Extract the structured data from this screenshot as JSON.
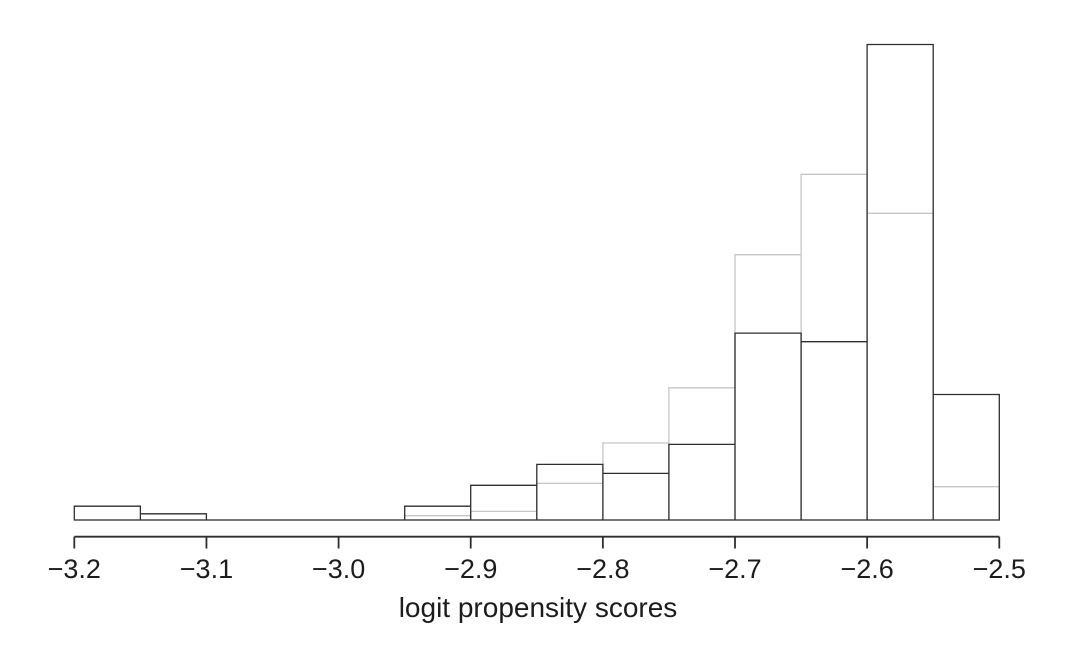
{
  "chart_data": {
    "type": "bar",
    "subtype": "overlaid-histograms",
    "title": "",
    "xlabel": "logit propensity scores",
    "ylabel": "",
    "y_axis_shown": false,
    "grid": false,
    "legend": "none",
    "xlim": [
      -3.2,
      -2.5
    ],
    "ylim_relative": [
      0,
      1
    ],
    "bin_width": 0.05,
    "bin_starts": [
      -3.2,
      -3.15,
      -3.1,
      -3.05,
      -3.0,
      -2.95,
      -2.9,
      -2.85,
      -2.8,
      -2.75,
      -2.7,
      -2.65,
      -2.6,
      -2.55
    ],
    "series": [
      {
        "key": "gray",
        "name": "gray outline histogram",
        "color": "#c6c6c6",
        "heights_note": "fraction of tallest bar (no y-axis scale shown in figure)",
        "relative_heights": [
          0,
          0,
          0,
          0,
          0,
          0.009,
          0.018,
          0.077,
          0.162,
          0.278,
          0.558,
          0.727,
          0.645,
          0.07
        ]
      },
      {
        "key": "black",
        "name": "black outline histogram",
        "color": "#2e2e2e",
        "heights_note": "fraction of tallest bar (no y-axis scale shown in figure)",
        "relative_heights": [
          0.029,
          0.013,
          0,
          0,
          0,
          0.029,
          0.073,
          0.117,
          0.098,
          0.159,
          0.393,
          0.375,
          1.0,
          0.264
        ]
      }
    ],
    "x_axis": {
      "ticks": [
        {
          "value": -3.2,
          "label": "−3.2"
        },
        {
          "value": -3.1,
          "label": "−3.1"
        },
        {
          "value": -3.0,
          "label": "−3.0"
        },
        {
          "value": -2.9,
          "label": "−2.9"
        },
        {
          "value": -2.8,
          "label": "−2.8"
        },
        {
          "value": -2.7,
          "label": "−2.7"
        },
        {
          "value": -2.6,
          "label": "−2.6"
        },
        {
          "value": -2.5,
          "label": "−2.5"
        }
      ]
    }
  }
}
